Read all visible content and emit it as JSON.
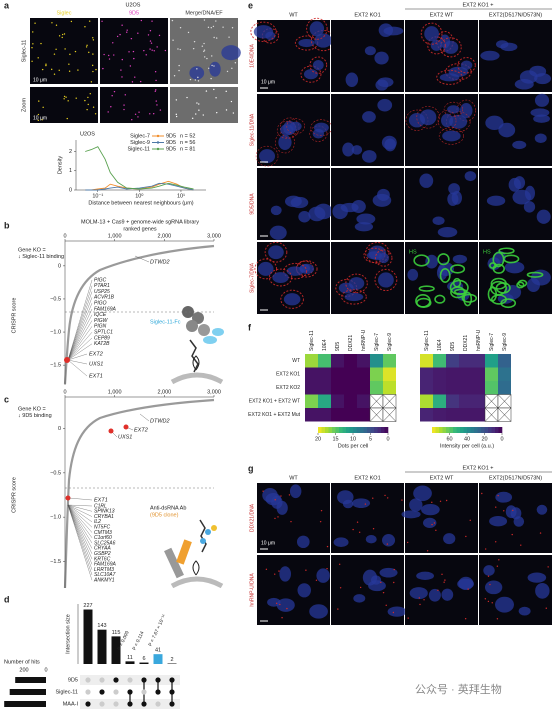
{
  "figure": {
    "a": {
      "letter": "a",
      "title": "U2OS",
      "channel_labels": [
        "Siglec",
        "9D5",
        "Merge/DNA/EF"
      ],
      "row_labels": [
        "Siglec-11",
        "Zoom"
      ],
      "scale_bars": [
        "10 μm",
        "10 μm"
      ],
      "plot": {
        "title": "U2OS",
        "ylabel": "Density",
        "xlabel": "Distance between nearest neighbours (μm)",
        "log_x": true,
        "xlim": [
          0.03,
          40
        ],
        "xticks": [
          {
            "value": 0.1,
            "label": "10⁻¹"
          },
          {
            "value": 1,
            "label": "10⁰"
          },
          {
            "value": 10,
            "label": "10¹"
          }
        ],
        "ylim": [
          0,
          2.6
        ],
        "yticks": [
          0,
          1,
          2
        ],
        "x": [
          0.05,
          0.07,
          0.1,
          0.15,
          0.2,
          0.3,
          0.5,
          1,
          2,
          3,
          5,
          8,
          12,
          20
        ],
        "series": [
          {
            "name": "Siglec-7",
            "pair": "9D5",
            "n": "n = 52",
            "color": "#f28e2b",
            "values": [
              0,
              0,
              0.05,
              0.1,
              0.3,
              0.2,
              0.1,
              0.05,
              0.15,
              0.3,
              0.45,
              0.3,
              0.1,
              0
            ]
          },
          {
            "name": "Siglec-9",
            "pair": "9D5",
            "n": "n = 56",
            "color": "#4e79a7",
            "values": [
              0,
              0,
              0,
              0.05,
              0.1,
              0.15,
              0.05,
              0.1,
              0.2,
              0.35,
              0.3,
              0.2,
              0.1,
              0
            ]
          },
          {
            "name": "Siglec-11",
            "pair": "9D5",
            "n": "n = 81",
            "color": "#59a14f",
            "values": [
              2.0,
              2.1,
              2.25,
              1.6,
              0.9,
              0.4,
              0.1,
              0.05,
              0.1,
              0.2,
              0.35,
              0.25,
              0.15,
              0.05
            ]
          }
        ]
      }
    },
    "b": {
      "letter": "b",
      "title": "MOLM-13 + Cas9 + genome-wide sgRNA library",
      "subtitle": "ranked genes",
      "ylabel": "CRISPR score",
      "annotation": [
        "Gene KO =",
        "↓ Siglec-11 binding"
      ],
      "xlim": [
        0,
        3000
      ],
      "xticks": [
        0,
        {
          "value": 1000,
          "label": "1,000"
        },
        {
          "value": 2000,
          "label": "2,000"
        },
        {
          "value": 3000,
          "label": "3,000"
        }
      ],
      "ylim": [
        -1.8,
        0.3
      ],
      "yticks": [
        0,
        {
          "value": -0.5,
          "label": "−0.5"
        },
        {
          "value": -1,
          "label": "−1.0"
        },
        {
          "value": -1.5,
          "label": "−1.5"
        }
      ],
      "top_genes": [
        "DTWD2"
      ],
      "genes": [
        "PIGC",
        "PTAR1",
        "USP25",
        "ACVR1B",
        "PIGO",
        "FAM169A",
        "IQCE",
        "PIGW",
        "PIGN",
        "SPTLC1",
        "CEP89",
        "KAT2B"
      ],
      "hit_genes": [
        "EXT2",
        "UXS1",
        "EXT1"
      ],
      "probe": [
        "Siglec-11-Fc"
      ]
    },
    "c": {
      "letter": "c",
      "ylabel": "CRISPR score",
      "annotation": [
        "Gene KO =",
        "↓ 9D5 binding"
      ],
      "xlim": [
        0,
        3000
      ],
      "xticks": [
        0,
        {
          "value": 1000,
          "label": "1,000"
        },
        {
          "value": 2000,
          "label": "2,000"
        },
        {
          "value": 3000,
          "label": "3,000"
        }
      ],
      "ylim": [
        -1.8,
        0.3
      ],
      "yticks": [
        0,
        {
          "value": -0.5,
          "label": "−0.5"
        },
        {
          "value": -1,
          "label": "−1.0"
        },
        {
          "value": -1.5,
          "label": "−1.5"
        }
      ],
      "top_genes": [
        "DTWD2",
        "EXT2",
        "UXS1"
      ],
      "hit_genes": [
        "EXT1"
      ],
      "genes": [
        "C1RL",
        "SPINK13",
        "CRYBA1",
        "IL2",
        "NT5FC",
        "CMTM3",
        "C1orf60",
        "SLC25A6",
        "CRYAA",
        "GSBP2",
        "KRT6C",
        "FAM169A",
        "LRRTM3",
        "SLC10A7",
        "ANKMY1"
      ],
      "probe": [
        "Anti-dsRNA Ab",
        "(9D5 clone)"
      ]
    },
    "d": {
      "letter": "d",
      "ylabel": "Intersection size",
      "ylim": [
        0,
        250
      ],
      "values": [
        227,
        143,
        115,
        11,
        6,
        41,
        2
      ],
      "colors": [
        "#111111",
        "#111111",
        "#111111",
        "#111111",
        "#111111",
        "#3aa8dd",
        "#111111"
      ],
      "sets": [
        "9D5",
        "Siglec-11",
        "MAA-I"
      ],
      "membership": [
        [
          0,
          0,
          1
        ],
        [
          0,
          1,
          0
        ],
        [
          1,
          0,
          0
        ],
        [
          0,
          1,
          1
        ],
        [
          1,
          0,
          1
        ],
        [
          1,
          1,
          0
        ],
        [
          1,
          1,
          1
        ]
      ],
      "set_sizes_label": "Number of hits",
      "set_xlim": [
        0,
        400
      ],
      "set_xticks": [
        200,
        0
      ],
      "set_sizes": [
        280,
        330,
        380
      ],
      "p_values": [
        "P = 0.009",
        "P = 0.114",
        "P = 7.67 × 10⁻¹¹"
      ]
    },
    "e": {
      "letter": "e",
      "group_label": "EXT2 KO1 +",
      "columns": [
        "WT",
        "EXT2 KO1",
        "EXT2 WT",
        "EXT2(D517N/D573N)"
      ],
      "rows": [
        "10E4/DNA",
        "Siglec-11/DNA",
        "9D5/DNA",
        "Siglec-7/DNA"
      ],
      "scale_bar": "10 μm",
      "inset_labels": [
        "HS",
        "HS"
      ]
    },
    "f": {
      "letter": "f",
      "rows": [
        "WT",
        "EXT2 KO1",
        "EXT2 KO2",
        "EXT2 KO1 + EXT2 WT",
        "EXT2 KO1 + EXT2 Mut"
      ],
      "colormap": "viridis",
      "heatmaps": [
        {
          "columns": [
            "Siglec-11",
            "10E4",
            "9D5",
            "DDX21",
            "hnRNP-U",
            "Siglec-7",
            "Siglec-9"
          ],
          "colorbar_label": "Dots per cell",
          "clim": [
            0,
            20
          ],
          "cticks": [
            20,
            15,
            10,
            5,
            0
          ],
          "values": [
            [
              17,
              14,
              1,
              0,
              1,
              10,
              15
            ],
            [
              1,
              1,
              0,
              0,
              0,
              16,
              19
            ],
            [
              1,
              1,
              0,
              0,
              0,
              15,
              18
            ],
            [
              16,
              12,
              1,
              0,
              1,
              null,
              null
            ],
            [
              1,
              1,
              0,
              0,
              0,
              null,
              null
            ]
          ]
        },
        {
          "columns": [
            "Siglec-11",
            "10E4",
            "9D5",
            "DDX21",
            "hnRNP-U",
            "Siglec-7",
            "Siglec-9"
          ],
          "colorbar_label": "Intensity per cell (a.u.)",
          "clim": [
            0,
            80
          ],
          "cticks": [
            60,
            40,
            20,
            0
          ],
          "values": [
            [
              75,
              55,
              15,
              10,
              10,
              45,
              25
            ],
            [
              8,
              6,
              5,
              5,
              5,
              60,
              30
            ],
            [
              8,
              6,
              5,
              5,
              5,
              58,
              28
            ],
            [
              70,
              50,
              12,
              8,
              8,
              null,
              null
            ],
            [
              8,
              6,
              5,
              5,
              5,
              null,
              null
            ]
          ]
        }
      ]
    },
    "g": {
      "letter": "g",
      "group_label": "EXT2 KO1 +",
      "columns": [
        "WT",
        "EXT2 KO1",
        "EXT2 WT",
        "EXT2(D517N/D573N)"
      ],
      "rows": [
        "DDX21/DNA",
        "hnRNP-U/DNA"
      ],
      "scale_bar": "10 μm"
    },
    "watermark": "公众号 · 英拜生物"
  }
}
